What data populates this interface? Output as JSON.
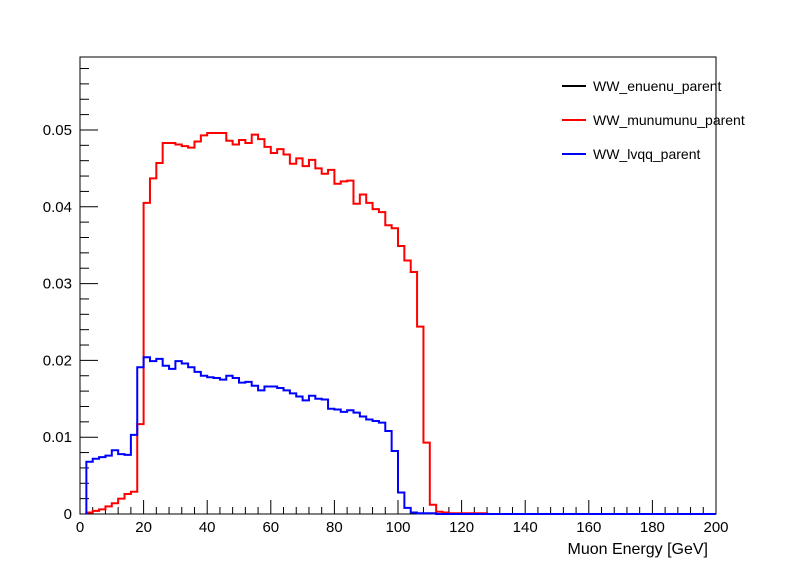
{
  "chart_data": {
    "type": "line",
    "title": "",
    "xlabel": "Muon Energy [GeV]",
    "ylabel": "",
    "xlim": [
      0,
      200
    ],
    "ylim": [
      0,
      0.0595
    ],
    "x_ticks": [
      0,
      20,
      40,
      60,
      80,
      100,
      120,
      140,
      160,
      180,
      200
    ],
    "x_tick_labels": [
      "0",
      "20",
      "40",
      "60",
      "80",
      "100",
      "120",
      "140",
      "160",
      "180",
      "200"
    ],
    "y_ticks": [
      0,
      0.01,
      0.02,
      0.03,
      0.04,
      0.05
    ],
    "y_tick_labels": [
      "0",
      "0.01",
      "0.02",
      "0.03",
      "0.04",
      "0.05"
    ],
    "grid": false,
    "legend_position": "top-right",
    "bin_width": 2,
    "series": [
      {
        "name": "WW_enuenu_parent",
        "color": "#000000",
        "values": []
      },
      {
        "name": "WW_munumunu_parent",
        "color": "#ff0000",
        "x_start": 2,
        "values": [
          0.0002,
          0.0004,
          0.0006,
          0.001,
          0.0014,
          0.002,
          0.0026,
          0.0029,
          0.0117,
          0.0405,
          0.0437,
          0.0457,
          0.0483,
          0.0483,
          0.0481,
          0.0479,
          0.0477,
          0.0485,
          0.0493,
          0.0496,
          0.0496,
          0.0496,
          0.0486,
          0.0481,
          0.0487,
          0.0483,
          0.0494,
          0.0488,
          0.0478,
          0.047,
          0.0475,
          0.0468,
          0.0456,
          0.0463,
          0.0453,
          0.0461,
          0.045,
          0.0443,
          0.0448,
          0.043,
          0.0433,
          0.0434,
          0.0404,
          0.0416,
          0.0405,
          0.0397,
          0.0393,
          0.0376,
          0.0372,
          0.0349,
          0.033,
          0.0315,
          0.0244,
          0.0093,
          0.0012,
          0.0003,
          0.0002,
          0.0001,
          0.0001,
          0.0001,
          0.0001,
          0.0001,
          0.0001
        ]
      },
      {
        "name": "WW_lvqq_parent",
        "color": "#0000ff",
        "x_start": 2,
        "values": [
          0.0068,
          0.0072,
          0.0074,
          0.0076,
          0.0083,
          0.0078,
          0.0077,
          0.0103,
          0.0191,
          0.0204,
          0.0199,
          0.0202,
          0.0193,
          0.0189,
          0.0199,
          0.0196,
          0.0191,
          0.0185,
          0.018,
          0.0178,
          0.0177,
          0.0175,
          0.018,
          0.0177,
          0.0171,
          0.0172,
          0.0167,
          0.0161,
          0.0166,
          0.0166,
          0.0164,
          0.0161,
          0.0157,
          0.0153,
          0.0148,
          0.0154,
          0.015,
          0.0149,
          0.0137,
          0.0136,
          0.0133,
          0.0135,
          0.0132,
          0.0127,
          0.0123,
          0.0121,
          0.0119,
          0.0108,
          0.0082,
          0.0028,
          0.0008,
          0.0002,
          0.0001,
          0.0001,
          0.0001
        ]
      }
    ]
  }
}
